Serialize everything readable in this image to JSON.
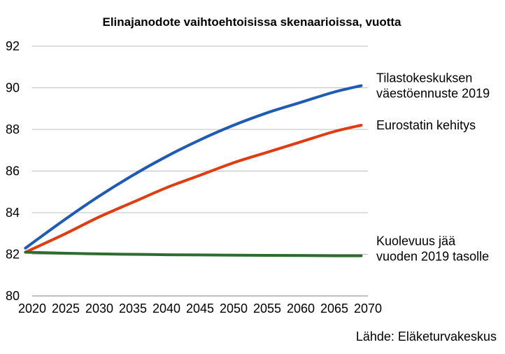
{
  "chart_data": {
    "type": "line",
    "title": "Elinajanodote vaihtoehtoisissa skenaarioissa, vuotta",
    "xlabel": "",
    "ylabel": "",
    "xlim": [
      2020,
      2070
    ],
    "ylim": [
      80,
      92
    ],
    "xticks": [
      2020,
      2025,
      2030,
      2035,
      2040,
      2045,
      2050,
      2055,
      2060,
      2065,
      2070
    ],
    "yticks": [
      80,
      82,
      84,
      86,
      88,
      90,
      92
    ],
    "grid": "horizontal",
    "x": [
      2019,
      2025,
      2030,
      2035,
      2040,
      2045,
      2050,
      2055,
      2060,
      2065,
      2069
    ],
    "series": [
      {
        "name_lines": [
          "Tilastokeskuksen",
          "väestöennuste 2019"
        ],
        "color": "#1f5bb5",
        "values": [
          82.3,
          83.7,
          84.8,
          85.8,
          86.7,
          87.5,
          88.2,
          88.8,
          89.3,
          89.8,
          90.1
        ]
      },
      {
        "name_lines": [
          "Eurostatin kehitys"
        ],
        "color": "#e03c12",
        "values": [
          82.1,
          83.0,
          83.8,
          84.5,
          85.2,
          85.8,
          86.4,
          86.9,
          87.4,
          87.9,
          88.2
        ]
      },
      {
        "name_lines": [
          "Kuolevuus jää",
          "vuoden 2019 tasolle"
        ],
        "color": "#2e6b2e",
        "values": [
          82.1,
          82.05,
          82.02,
          82.0,
          81.98,
          81.97,
          81.96,
          81.95,
          81.94,
          81.93,
          81.93
        ]
      }
    ],
    "source": "Lähde: Eläketurvakeskus"
  }
}
